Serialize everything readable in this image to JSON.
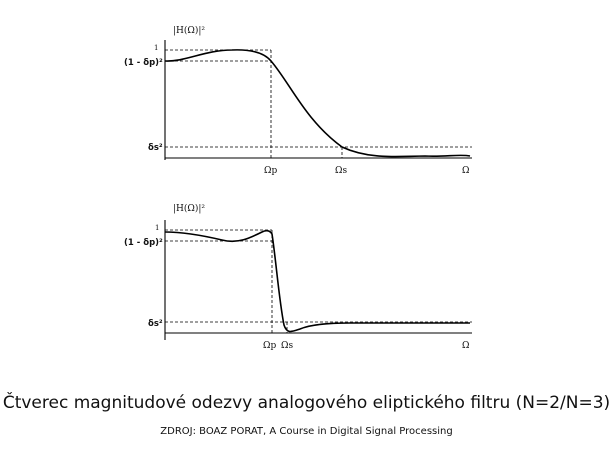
{
  "plots": [
    {
      "ylabel": "|H(Ω)|²",
      "y_one_label": "1",
      "passband_label": "(1 - δp)²",
      "stopband_label": "δs²",
      "x_pass_label": "Ωp",
      "x_stop_label": "Ωs",
      "x_axis_label": "Ω"
    },
    {
      "ylabel": "|H(Ω)|²",
      "y_one_label": "1",
      "passband_label": "(1 - δp)²",
      "stopband_label": "δs²",
      "x_pass_label": "Ωp",
      "x_stop_label": "Ωs",
      "x_axis_label": "Ω"
    }
  ],
  "caption": "Čtverec magnitudové odezvy analogového eliptického filtru (N=2/N=3)",
  "source": "ZDROJ: BOAZ PORAT, A Course in Digital Signal Processing"
}
